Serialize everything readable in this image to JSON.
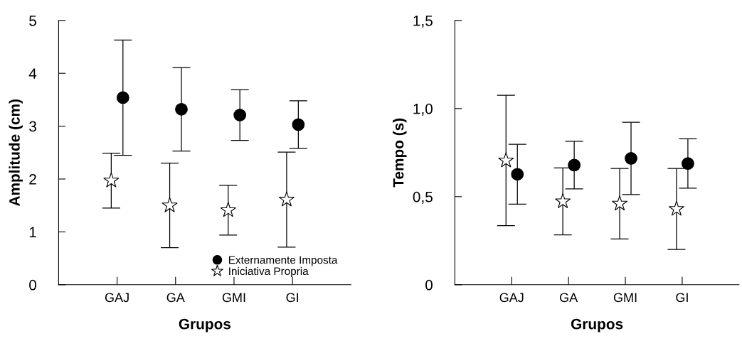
{
  "chart_data": [
    {
      "type": "scatter",
      "xlabel": "Grupos",
      "ylabel": "Amplitude (cm)",
      "categories": [
        "GAJ",
        "GA",
        "GMI",
        "GI"
      ],
      "ylim": [
        0,
        5
      ],
      "yticks": [
        0,
        1,
        2,
        3,
        4,
        5
      ],
      "legend": "bottom right",
      "grid": false,
      "series": [
        {
          "name": "Externamente Imposta",
          "color": "#000000",
          "marker": "circle",
          "values": [
            3.54,
            3.32,
            3.21,
            3.03
          ],
          "errors": [
            1.09,
            0.79,
            0.48,
            0.45
          ]
        },
        {
          "name": "Iniciativa Propria",
          "color": "#ffffff",
          "marker": "star",
          "values": [
            1.97,
            1.5,
            1.41,
            1.61
          ],
          "errors": [
            0.52,
            0.8,
            0.47,
            0.9
          ]
        }
      ]
    },
    {
      "type": "scatter",
      "xlabel": "Grupos",
      "ylabel": "Tempo (s)",
      "categories": [
        "GAJ",
        "GA",
        "GMI",
        "GI"
      ],
      "ylim": [
        0,
        1.5
      ],
      "yticks": [
        {
          "value": 0,
          "label": "0"
        },
        {
          "value": 0.5,
          "label": "0,5"
        },
        {
          "value": 1.0,
          "label": "1,0"
        },
        {
          "value": 1.5,
          "label": "1,5"
        }
      ],
      "legend": false,
      "grid": false,
      "series": [
        {
          "color": "#000000",
          "marker": "circle",
          "values": [
            0.627,
            0.679,
            0.717,
            0.688
          ],
          "errors": [
            0.17,
            0.135,
            0.205,
            0.14
          ]
        },
        {
          "color": "#ffffff",
          "marker": "star",
          "values": [
            0.705,
            0.473,
            0.46,
            0.43
          ],
          "errors": [
            0.37,
            0.19,
            0.2,
            0.23
          ]
        }
      ]
    }
  ]
}
